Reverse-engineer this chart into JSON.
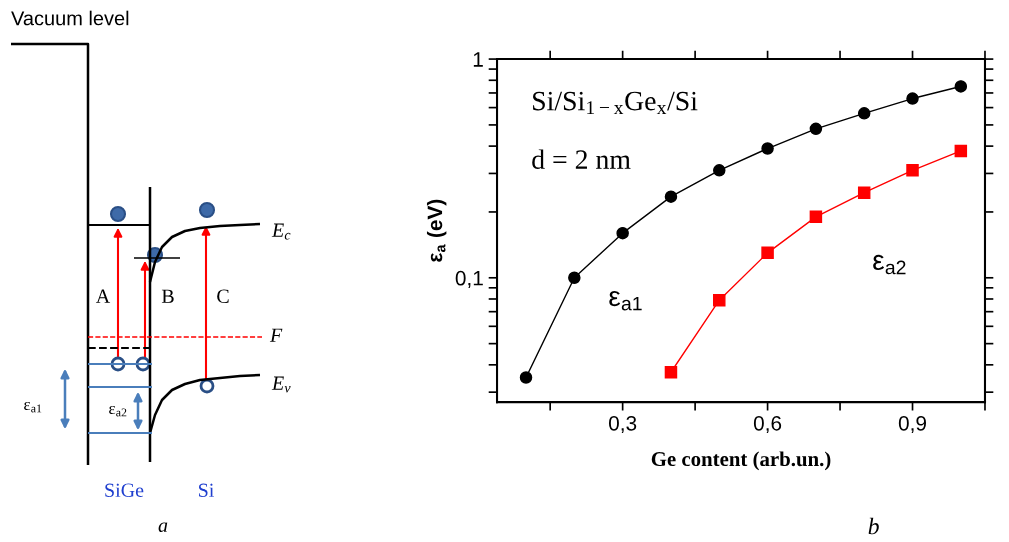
{
  "chart_data": [
    {
      "type": "other",
      "annotations": [
        "Vacuum level",
        "A",
        "B",
        "C",
        "E$_{c}$",
        "F",
        "E$_{v}$",
        "ε$_{a1}$",
        "ε$_{a2}$",
        "SiGe",
        "Si",
        "a"
      ]
    },
    {
      "type": "line",
      "xlabel": "Ge content (arb.un.)",
      "ylabel": "ε$_{a}$ (eV)",
      "log": "y",
      "xlim": [
        0.04,
        1.05
      ],
      "ylim": [
        0.027,
        1
      ],
      "xticks": [
        {
          "value": 0.15,
          "label": null
        },
        {
          "value": 0.3,
          "label": "0,3"
        },
        {
          "value": 0.45,
          "label": null
        },
        {
          "value": 0.6,
          "label": "0,6"
        },
        {
          "value": 0.75,
          "label": null
        },
        {
          "value": 0.9,
          "label": "0,9"
        },
        {
          "value": 1.05,
          "label": null
        }
      ],
      "yticks": [
        {
          "value": 0.03,
          "label": null
        },
        {
          "value": 0.04,
          "label": null
        },
        {
          "value": 0.05,
          "label": null
        },
        {
          "value": 0.06,
          "label": null
        },
        {
          "value": 0.07,
          "label": null
        },
        {
          "value": 0.08,
          "label": null
        },
        {
          "value": 0.09,
          "label": null
        },
        {
          "value": 0.1,
          "label": "0,1"
        },
        {
          "value": 0.2,
          "label": null
        },
        {
          "value": 0.3,
          "label": null
        },
        {
          "value": 0.4,
          "label": null
        },
        {
          "value": 0.5,
          "label": null
        },
        {
          "value": 0.6,
          "label": null
        },
        {
          "value": 0.7,
          "label": null
        },
        {
          "value": 0.8,
          "label": null
        },
        {
          "value": 0.9,
          "label": null
        },
        1
      ],
      "grid": false,
      "legend": false,
      "line_style": "solid",
      "series": [
        {
          "name": "ε$_{a1}$",
          "color": "#000000",
          "marker": "circle",
          "x": [
            0.1,
            0.2,
            0.3,
            0.4,
            0.5,
            0.6,
            0.7,
            0.8,
            0.9,
            1.0
          ],
          "values": [
            0.035,
            0.1,
            0.16,
            0.235,
            0.31,
            0.39,
            0.48,
            0.565,
            0.66,
            0.75
          ]
        },
        {
          "name": "ε$_{a2}$",
          "color": "#ff0000",
          "marker": "square",
          "x": [
            0.4,
            0.5,
            0.6,
            0.7,
            0.8,
            0.9,
            1.0
          ],
          "values": [
            0.037,
            0.079,
            0.13,
            0.19,
            0.245,
            0.31,
            0.38
          ]
        }
      ],
      "annotations": [
        "Si/Si$_{1−x}$Ge$_{x}$/Si",
        "d = 2 nm",
        "b"
      ]
    }
  ]
}
